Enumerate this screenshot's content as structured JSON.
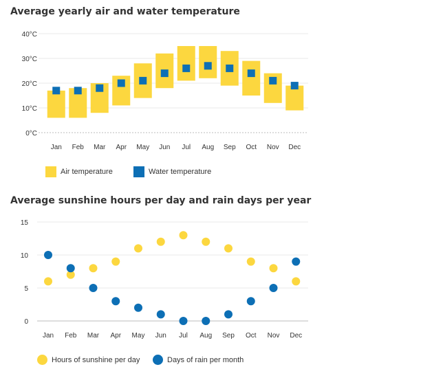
{
  "colors": {
    "air": "#fcd73f",
    "water": "#0d6fb5",
    "sunshine": "#fcd73f",
    "rain": "#0d6fb5",
    "grid": "#e8e8e8",
    "axis": "#bbbbbb"
  },
  "chart_data": [
    {
      "type": "range-bar-with-markers",
      "title": "Average yearly air and water temperature",
      "categories": [
        "Jan",
        "Feb",
        "Mar",
        "Apr",
        "May",
        "Jun",
        "Jul",
        "Aug",
        "Sep",
        "Oct",
        "Nov",
        "Dec"
      ],
      "y_ticks": [
        "0°C",
        "10°C",
        "20°C",
        "30°C",
        "40°C"
      ],
      "ylim": [
        0,
        40
      ],
      "series": [
        {
          "name": "Air temperature",
          "kind": "range",
          "low": [
            6,
            6,
            8,
            11,
            14,
            18,
            21,
            22,
            19,
            15,
            12,
            9
          ],
          "high": [
            17,
            18,
            20,
            23,
            28,
            32,
            35,
            35,
            33,
            29,
            24,
            19
          ]
        },
        {
          "name": "Water temperature",
          "kind": "marker",
          "values": [
            17,
            17,
            18,
            20,
            21,
            24,
            26,
            27,
            26,
            24,
            21,
            19
          ]
        }
      ],
      "legend": [
        "Air temperature",
        "Water temperature"
      ]
    },
    {
      "type": "scatter",
      "title": "Average sunshine hours per day and rain days per year",
      "categories": [
        "Jan",
        "Feb",
        "Mar",
        "Apr",
        "May",
        "Jun",
        "Jul",
        "Aug",
        "Sep",
        "Oct",
        "Nov",
        "Dec"
      ],
      "y_ticks": [
        "0",
        "5",
        "10",
        "15"
      ],
      "ylim": [
        0,
        15
      ],
      "series": [
        {
          "name": "Hours of sunshine per day",
          "values": [
            6,
            7,
            8,
            9,
            11,
            12,
            13,
            12,
            11,
            9,
            8,
            6
          ]
        },
        {
          "name": "Days of rain per month",
          "values": [
            10,
            8,
            5,
            3,
            2,
            1,
            0,
            0,
            1,
            3,
            5,
            9
          ]
        }
      ],
      "legend": [
        "Hours of sunshine per day",
        "Days of rain per month"
      ]
    }
  ]
}
